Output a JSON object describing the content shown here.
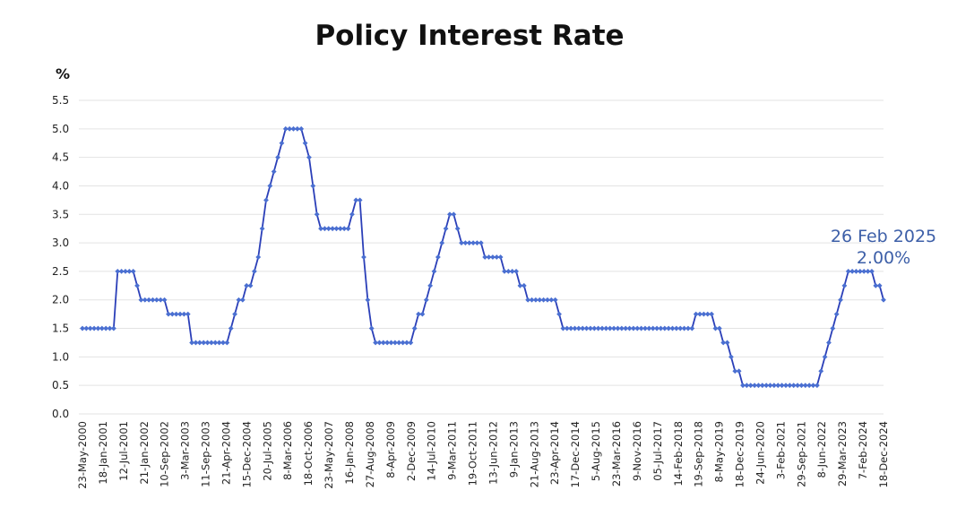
{
  "chart_data": {
    "type": "line",
    "title": "Policy Interest Rate",
    "ylabel": "%",
    "xlabel": "",
    "ylim": [
      0,
      5.5
    ],
    "yticks": [
      "0.0",
      "0.5",
      "1.0",
      "1.5",
      "2.0",
      "2.5",
      "3.0",
      "3.5",
      "4.0",
      "4.5",
      "5.0",
      "5.5"
    ],
    "grid": true,
    "line_color": "#2b3fb8",
    "marker_color": "#4a6fd1",
    "annotation_color": "#3d5fa8",
    "x_tick_labels": [
      "23-May-2000",
      "18-Jan-2001",
      "12-Jul-2001",
      "21-Jan-2002",
      "10-Sep-2002",
      "3-Mar-2003",
      "11-Sep-2003",
      "21-Apr-2004",
      "15-Dec-2004",
      "20-Jul-2005",
      "8-Mar-2006",
      "18-Oct-2006",
      "23-May-2007",
      "16-Jan-2008",
      "27-Aug-2008",
      "8-Apr-2009",
      "2-Dec-2009",
      "14-Jul-2010",
      "9-Mar-2011",
      "19-Oct-2011",
      "13-Jun-2012",
      "9-Jan-2013",
      "21-Aug-2013",
      "23-Apr-2014",
      "17-Dec-2014",
      "5-Aug-2015",
      "23-Mar-2016",
      "9-Nov-2016",
      "05-Jul-2017",
      "14-Feb-2018",
      "19-Sep-2018",
      "8-May-2019",
      "18-Dec-2019",
      "24-Jun-2020",
      "3-Feb-2021",
      "29-Sep-2021",
      "8-Jun-2022",
      "29-Mar-2023",
      "7-Feb-2024",
      "18-Dec-2024"
    ],
    "series": [
      {
        "values": [
          1.5,
          1.5,
          1.5,
          1.5,
          1.5,
          1.5,
          1.5,
          1.5,
          1.5,
          2.5,
          2.5,
          2.5,
          2.5,
          2.5,
          2.25,
          2.0,
          2.0,
          2.0,
          2.0,
          2.0,
          2.0,
          2.0,
          1.75,
          1.75,
          1.75,
          1.75,
          1.75,
          1.75,
          1.25,
          1.25,
          1.25,
          1.25,
          1.25,
          1.25,
          1.25,
          1.25,
          1.25,
          1.25,
          1.5,
          1.75,
          2.0,
          2.0,
          2.25,
          2.25,
          2.5,
          2.75,
          3.25,
          3.75,
          4.0,
          4.25,
          4.5,
          4.75,
          5.0,
          5.0,
          5.0,
          5.0,
          5.0,
          4.75,
          4.5,
          4.0,
          3.5,
          3.25,
          3.25,
          3.25,
          3.25,
          3.25,
          3.25,
          3.25,
          3.25,
          3.5,
          3.75,
          3.75,
          2.75,
          2.0,
          1.5,
          1.25,
          1.25,
          1.25,
          1.25,
          1.25,
          1.25,
          1.25,
          1.25,
          1.25,
          1.25,
          1.5,
          1.75,
          1.75,
          2.0,
          2.25,
          2.5,
          2.75,
          3.0,
          3.25,
          3.5,
          3.5,
          3.25,
          3.0,
          3.0,
          3.0,
          3.0,
          3.0,
          3.0,
          2.75,
          2.75,
          2.75,
          2.75,
          2.75,
          2.5,
          2.5,
          2.5,
          2.5,
          2.25,
          2.25,
          2.0,
          2.0,
          2.0,
          2.0,
          2.0,
          2.0,
          2.0,
          2.0,
          1.75,
          1.5,
          1.5,
          1.5,
          1.5,
          1.5,
          1.5,
          1.5,
          1.5,
          1.5,
          1.5,
          1.5,
          1.5,
          1.5,
          1.5,
          1.5,
          1.5,
          1.5,
          1.5,
          1.5,
          1.5,
          1.5,
          1.5,
          1.5,
          1.5,
          1.5,
          1.5,
          1.5,
          1.5,
          1.5,
          1.5,
          1.5,
          1.5,
          1.5,
          1.5,
          1.75,
          1.75,
          1.75,
          1.75,
          1.75,
          1.5,
          1.5,
          1.25,
          1.25,
          1.0,
          0.75,
          0.75,
          0.5,
          0.5,
          0.5,
          0.5,
          0.5,
          0.5,
          0.5,
          0.5,
          0.5,
          0.5,
          0.5,
          0.5,
          0.5,
          0.5,
          0.5,
          0.5,
          0.5,
          0.5,
          0.5,
          0.5,
          0.75,
          1.0,
          1.25,
          1.5,
          1.75,
          2.0,
          2.25,
          2.5,
          2.5,
          2.5,
          2.5,
          2.5,
          2.5,
          2.5,
          2.25,
          2.25,
          2.0
        ]
      }
    ],
    "annotations": [
      "26 Feb 2025",
      "2.00%"
    ]
  }
}
